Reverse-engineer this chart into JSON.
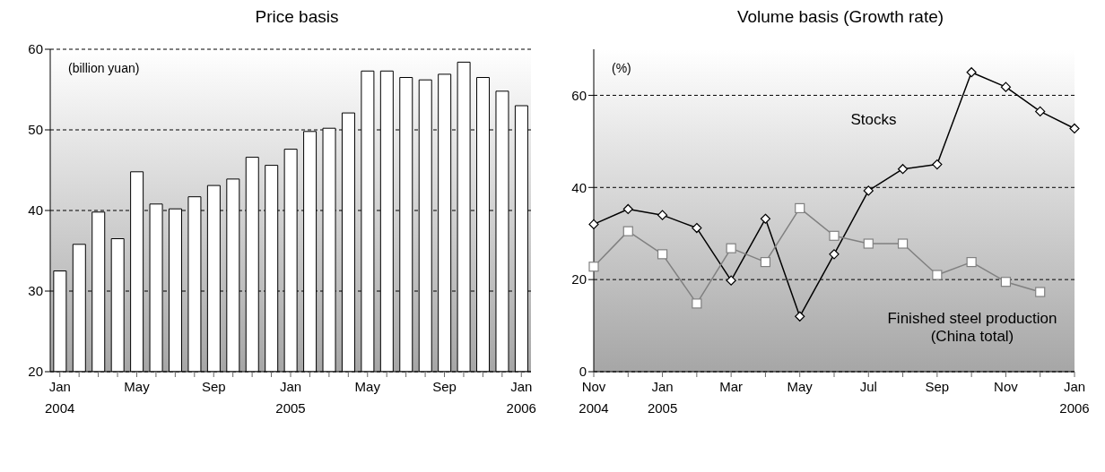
{
  "chart_data": [
    {
      "type": "bar",
      "title": "Price basis",
      "ylabel": "(billion yuan)",
      "categories": [
        "Jan 2004",
        null,
        null,
        null,
        "May",
        null,
        null,
        null,
        "Sep",
        null,
        null,
        null,
        "Jan 2005",
        null,
        null,
        null,
        "May",
        null,
        null,
        null,
        "Sep",
        null,
        null,
        null,
        "Jan 2006"
      ],
      "values": [
        32.5,
        35.8,
        39.8,
        36.5,
        44.8,
        40.8,
        40.2,
        41.7,
        43.1,
        43.9,
        46.6,
        45.6,
        47.6,
        49.8,
        50.2,
        52.1,
        57.3,
        57.3,
        56.5,
        56.2,
        56.9,
        58.4,
        56.5,
        54.8,
        53.0
      ],
      "color": "#ffffff",
      "ylim": [
        20,
        60
      ],
      "yticks": [
        20,
        30,
        40,
        50,
        60
      ],
      "grid": "y"
    },
    {
      "type": "line",
      "title": "Volume basis (Growth rate)",
      "ylabel": "(%)",
      "categories": [
        "Nov 2004",
        null,
        "Jan 2005",
        null,
        "Mar",
        null,
        "May",
        null,
        "Jul",
        null,
        "Sep",
        null,
        "Nov",
        null,
        "Jan 2006"
      ],
      "series": [
        {
          "name": "Stocks",
          "color": "#000000",
          "marker": "diamond",
          "values": [
            32,
            35.3,
            34,
            31.2,
            19.8,
            33.2,
            12,
            25.5,
            39.3,
            44,
            45,
            65,
            61.8,
            56.5,
            52.8
          ]
        },
        {
          "name": "Finished steel production (China total)",
          "color": "#808080",
          "marker": "square",
          "values": [
            22.8,
            30.5,
            25.5,
            14.8,
            26.8,
            23.8,
            35.5,
            29.5,
            27.8,
            27.8,
            21,
            23.8,
            19.5,
            17.3,
            null
          ]
        }
      ],
      "ylim": [
        0,
        70
      ],
      "yticks": [
        0,
        20,
        40,
        60
      ],
      "grid": "y"
    }
  ]
}
